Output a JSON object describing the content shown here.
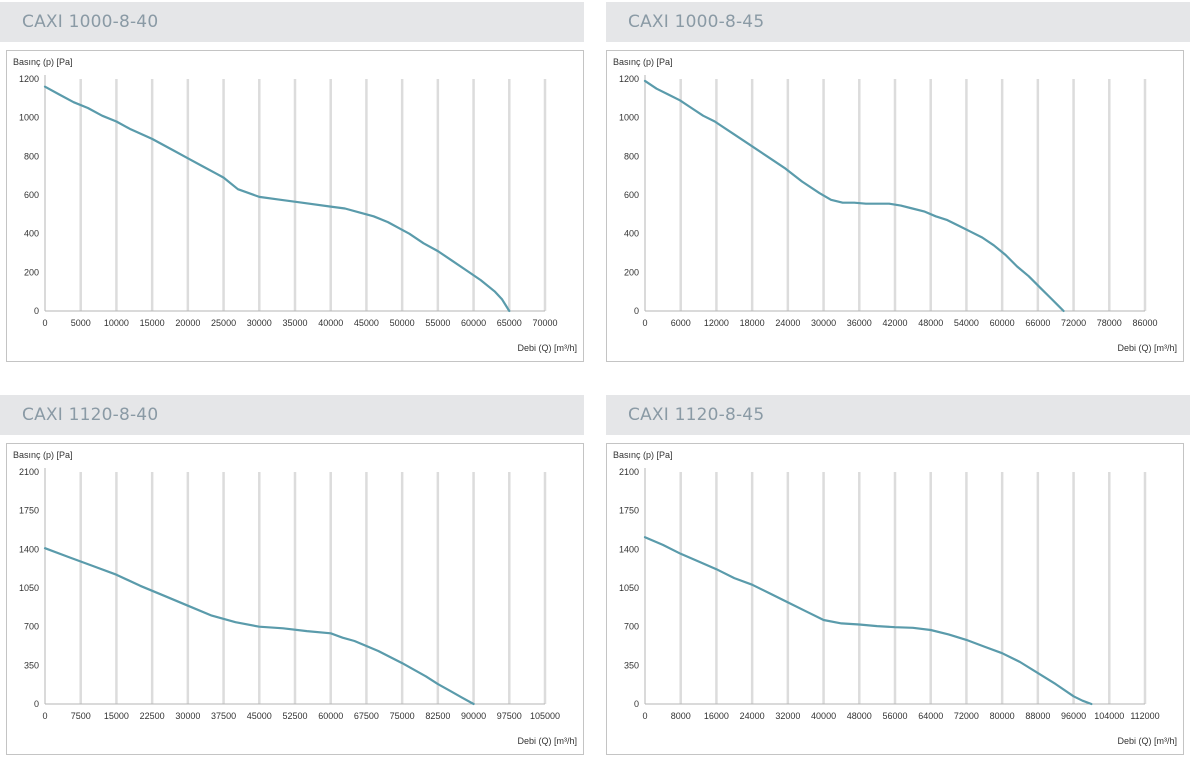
{
  "colors": {
    "curve": "#5a9bab",
    "grid": "#dcdcdc",
    "axis": "#b5b5b5",
    "header_bg": "#e5e6e8",
    "header_text": "#8a9aa5"
  },
  "chart_data": [
    {
      "type": "line",
      "title": "CAXI 1000-8-40",
      "ylabel": "Basınç (p) [Pa]",
      "xlabel": "Debi (Q) [m³/h]",
      "xlim": [
        0,
        70000
      ],
      "ylim": [
        0,
        1200
      ],
      "x_ticks": [
        "0",
        "5000",
        "10000",
        "15000",
        "20000",
        "25000",
        "30000",
        "35000",
        "40000",
        "45000",
        "50000",
        "55000",
        "60000",
        "65000",
        "70000"
      ],
      "y_ticks": [
        "0",
        "200",
        "400",
        "600",
        "800",
        "1000",
        "1200"
      ],
      "series": [
        {
          "x": [
            0,
            2000,
            4000,
            6000,
            8000,
            10000,
            12000,
            15000,
            18000,
            20000,
            22000,
            24000,
            25000,
            27000,
            30000,
            33000,
            36000,
            40000,
            42000,
            44000,
            46000,
            48000,
            50000,
            51000,
            53000,
            55000,
            57000,
            59000,
            61000,
            63000,
            64000,
            65000
          ],
          "y": [
            1160,
            1120,
            1080,
            1050,
            1010,
            980,
            940,
            890,
            830,
            790,
            750,
            710,
            690,
            630,
            590,
            575,
            560,
            540,
            530,
            510,
            490,
            460,
            420,
            400,
            350,
            310,
            260,
            210,
            160,
            100,
            60,
            0
          ]
        }
      ]
    },
    {
      "type": "line",
      "title": "CAXI 1000-8-45",
      "ylabel": "Basınç (p) [Pa]",
      "xlabel": "Debi (Q) [m³/h]",
      "xlim": [
        0,
        86000
      ],
      "ylim": [
        0,
        1200
      ],
      "x_ticks": [
        "0",
        "6000",
        "12000",
        "18000",
        "24000",
        "30000",
        "36000",
        "42000",
        "48000",
        "54000",
        "60000",
        "66000",
        "72000",
        "78000",
        "86000"
      ],
      "y_ticks": [
        "0",
        "200",
        "400",
        "600",
        "800",
        "1000",
        "1200"
      ],
      "series": [
        {
          "x": [
            0,
            2000,
            4000,
            6000,
            8000,
            10000,
            12000,
            15000,
            18000,
            21000,
            24000,
            27000,
            30000,
            32000,
            34000,
            36000,
            38000,
            40000,
            42000,
            44000,
            46000,
            48000,
            50000,
            52000,
            54000,
            56000,
            58000,
            60000,
            62000,
            64000,
            66000,
            68000,
            70000,
            71000,
            72000
          ],
          "y": [
            1190,
            1150,
            1120,
            1090,
            1050,
            1010,
            980,
            920,
            860,
            800,
            740,
            670,
            610,
            575,
            560,
            560,
            555,
            555,
            555,
            545,
            530,
            515,
            490,
            470,
            440,
            410,
            380,
            340,
            290,
            230,
            180,
            120,
            60,
            30,
            0
          ]
        }
      ]
    },
    {
      "type": "line",
      "title": "CAXI 1120-8-40",
      "ylabel": "Basınç (p) [Pa]",
      "xlabel": "Debi (Q) [m³/h]",
      "xlim": [
        0,
        105000
      ],
      "ylim": [
        0,
        2100
      ],
      "x_ticks": [
        "0",
        "7500",
        "15000",
        "22500",
        "30000",
        "37500",
        "45000",
        "52500",
        "60000",
        "67500",
        "75000",
        "82500",
        "90000",
        "97500",
        "105000"
      ],
      "y_ticks": [
        "0",
        "350",
        "700",
        "1050",
        "1400",
        "1750",
        "2100"
      ],
      "series": [
        {
          "x": [
            0,
            5000,
            10000,
            15000,
            20000,
            25000,
            30000,
            35000,
            40000,
            45000,
            50000,
            55000,
            60000,
            62500,
            65000,
            70000,
            75000,
            80000,
            82500,
            85000,
            87500,
            90000
          ],
          "y": [
            1410,
            1330,
            1250,
            1170,
            1070,
            980,
            890,
            800,
            740,
            700,
            685,
            660,
            640,
            600,
            570,
            480,
            370,
            250,
            180,
            120,
            60,
            0
          ]
        }
      ]
    },
    {
      "type": "line",
      "title": "CAXI 1120-8-45",
      "ylabel": "Basınç (p) [Pa]",
      "xlabel": "Debi (Q) [m³/h]",
      "xlim": [
        0,
        112000
      ],
      "ylim": [
        0,
        2100
      ],
      "x_ticks": [
        "0",
        "8000",
        "16000",
        "24000",
        "32000",
        "40000",
        "48000",
        "56000",
        "64000",
        "72000",
        "80000",
        "88000",
        "96000",
        "104000",
        "112000"
      ],
      "y_ticks": [
        "0",
        "350",
        "700",
        "1050",
        "1400",
        "1750",
        "2100"
      ],
      "series": [
        {
          "x": [
            0,
            4000,
            8000,
            12000,
            16000,
            20000,
            24000,
            28000,
            32000,
            36000,
            40000,
            44000,
            48000,
            52000,
            56000,
            60000,
            64000,
            68000,
            72000,
            76000,
            80000,
            84000,
            88000,
            92000,
            96000,
            98000,
            100000
          ],
          "y": [
            1510,
            1440,
            1360,
            1290,
            1220,
            1140,
            1080,
            1000,
            920,
            840,
            760,
            730,
            720,
            705,
            695,
            690,
            670,
            630,
            580,
            520,
            460,
            380,
            280,
            180,
            70,
            30,
            0
          ]
        }
      ]
    }
  ]
}
